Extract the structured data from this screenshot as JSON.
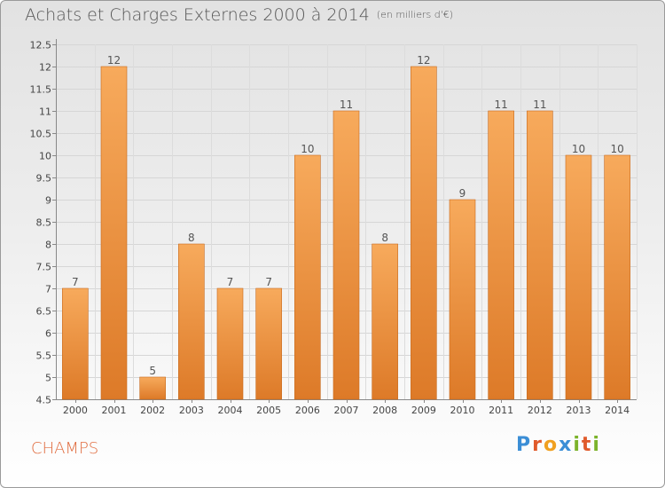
{
  "title": "Achats et Charges Externes 2000 à 2014",
  "subtitle": "(en milliers d'€)",
  "town": "CHAMPS",
  "logo": {
    "text": "Proxiti",
    "letters": [
      "P",
      "r",
      "o",
      "x",
      "i",
      "t",
      "i"
    ],
    "colors": [
      "#3b8ed6",
      "#e05a2b",
      "#f0a020",
      "#3b8ed6",
      "#7cb32b",
      "#e05a2b",
      "#7cb32b"
    ]
  },
  "colors": {
    "bar_top": "#f7aa5c",
    "bar_bottom": "#dd7a28",
    "bar_outline": "#c8691c",
    "title": "#555555",
    "town": "#e06a3c"
  },
  "chart_data": {
    "type": "bar",
    "title": "Achats et Charges Externes 2000 à 2014",
    "subtitle": "(en milliers d'€)",
    "categories": [
      "2000",
      "2001",
      "2002",
      "2003",
      "2004",
      "2005",
      "2006",
      "2007",
      "2008",
      "2009",
      "2010",
      "2011",
      "2012",
      "2013",
      "2014"
    ],
    "values": [
      7,
      12,
      5,
      8,
      7,
      7,
      10,
      11,
      8,
      12,
      9,
      11,
      11,
      10,
      10
    ],
    "labels": [
      "7",
      "12",
      "5",
      "8",
      "7",
      "7",
      "10",
      "11",
      "8",
      "12",
      "9",
      "11",
      "11",
      "10",
      "10"
    ],
    "ylim": [
      4.5,
      12.5
    ],
    "yticks": [
      4.5,
      5,
      5.5,
      6,
      6.5,
      7,
      7.5,
      8,
      8.5,
      9,
      9.5,
      10,
      10.5,
      11,
      11.5,
      12,
      12.5
    ],
    "ytick_labels": [
      "4.5",
      "5",
      "5.5",
      "6",
      "6.5",
      "7",
      "7.5",
      "8",
      "8.5",
      "9",
      "9.5",
      "10",
      "10.5",
      "11",
      "11.5",
      "12",
      "12.5"
    ],
    "grid": true,
    "xlabel": "",
    "ylabel": ""
  }
}
